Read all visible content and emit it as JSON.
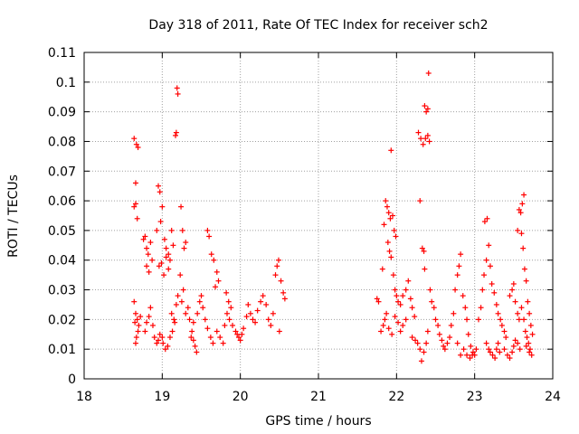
{
  "chart_data": {
    "type": "scatter",
    "title": "Day 318 of 2011, Rate Of TEC Index for receiver sch2",
    "xlabel": "GPS time / hours",
    "ylabel": "ROTI / TECUs",
    "xlim": [
      18,
      24
    ],
    "ylim": [
      0,
      0.11
    ],
    "xticks": [
      "18",
      "19",
      "20",
      "21",
      "22",
      "23",
      "24"
    ],
    "yticks": [
      "0",
      "0.01",
      "0.02",
      "0.03",
      "0.04",
      "0.05",
      "0.06",
      "0.07",
      "0.08",
      "0.09",
      "0.1",
      "0.11"
    ],
    "grid": true,
    "marker": "+",
    "color": "#ff0000",
    "series": [
      {
        "name": "ROTI",
        "points": [
          [
            18.64,
            0.081
          ],
          [
            18.67,
            0.079
          ],
          [
            18.69,
            0.078
          ],
          [
            18.66,
            0.066
          ],
          [
            18.64,
            0.058
          ],
          [
            18.66,
            0.059
          ],
          [
            18.68,
            0.054
          ],
          [
            18.64,
            0.026
          ],
          [
            18.66,
            0.022
          ],
          [
            18.68,
            0.02
          ],
          [
            18.7,
            0.018
          ],
          [
            18.65,
            0.019
          ],
          [
            18.67,
            0.014
          ],
          [
            18.69,
            0.016
          ],
          [
            18.72,
            0.021
          ],
          [
            18.66,
            0.012
          ],
          [
            18.76,
            0.047
          ],
          [
            18.78,
            0.048
          ],
          [
            18.8,
            0.044
          ],
          [
            18.82,
            0.042
          ],
          [
            18.85,
            0.046
          ],
          [
            18.8,
            0.038
          ],
          [
            18.83,
            0.036
          ],
          [
            18.87,
            0.04
          ],
          [
            18.78,
            0.016
          ],
          [
            18.8,
            0.019
          ],
          [
            18.83,
            0.021
          ],
          [
            18.85,
            0.024
          ],
          [
            18.88,
            0.018
          ],
          [
            18.9,
            0.014
          ],
          [
            18.93,
            0.012
          ],
          [
            18.95,
            0.013
          ],
          [
            18.97,
            0.015
          ],
          [
            19.0,
            0.014
          ],
          [
            18.95,
            0.065
          ],
          [
            18.97,
            0.063
          ],
          [
            19.0,
            0.058
          ],
          [
            18.98,
            0.053
          ],
          [
            18.93,
            0.05
          ],
          [
            19.03,
            0.047
          ],
          [
            19.05,
            0.044
          ],
          [
            19.08,
            0.042
          ],
          [
            19.1,
            0.04
          ],
          [
            19.12,
            0.05
          ],
          [
            19.14,
            0.045
          ],
          [
            18.96,
            0.038
          ],
          [
            18.99,
            0.039
          ],
          [
            19.02,
            0.035
          ],
          [
            19.05,
            0.041
          ],
          [
            19.08,
            0.037
          ],
          [
            19.01,
            0.012
          ],
          [
            19.04,
            0.01
          ],
          [
            19.07,
            0.011
          ],
          [
            19.1,
            0.014
          ],
          [
            19.13,
            0.016
          ],
          [
            19.15,
            0.02
          ],
          [
            19.12,
            0.022
          ],
          [
            19.18,
            0.025
          ],
          [
            19.2,
            0.028
          ],
          [
            19.16,
            0.019
          ],
          [
            19.19,
            0.098
          ],
          [
            19.2,
            0.096
          ],
          [
            19.18,
            0.083
          ],
          [
            19.17,
            0.082
          ],
          [
            19.24,
            0.058
          ],
          [
            19.26,
            0.05
          ],
          [
            19.3,
            0.046
          ],
          [
            19.28,
            0.044
          ],
          [
            19.23,
            0.035
          ],
          [
            19.27,
            0.03
          ],
          [
            19.25,
            0.026
          ],
          [
            19.3,
            0.022
          ],
          [
            19.33,
            0.024
          ],
          [
            19.35,
            0.02
          ],
          [
            19.38,
            0.016
          ],
          [
            19.4,
            0.013
          ],
          [
            19.42,
            0.011
          ],
          [
            19.44,
            0.009
          ],
          [
            19.37,
            0.014
          ],
          [
            19.4,
            0.019
          ],
          [
            19.45,
            0.022
          ],
          [
            19.48,
            0.026
          ],
          [
            19.5,
            0.028
          ],
          [
            19.52,
            0.024
          ],
          [
            19.58,
            0.05
          ],
          [
            19.6,
            0.048
          ],
          [
            19.63,
            0.042
          ],
          [
            19.66,
            0.04
          ],
          [
            19.7,
            0.036
          ],
          [
            19.72,
            0.033
          ],
          [
            19.68,
            0.031
          ],
          [
            19.55,
            0.02
          ],
          [
            19.58,
            0.017
          ],
          [
            19.62,
            0.014
          ],
          [
            19.65,
            0.012
          ],
          [
            19.7,
            0.016
          ],
          [
            19.74,
            0.014
          ],
          [
            19.78,
            0.012
          ],
          [
            19.8,
            0.018
          ],
          [
            19.83,
            0.022
          ],
          [
            19.85,
            0.026
          ],
          [
            19.88,
            0.024
          ],
          [
            19.82,
            0.029
          ],
          [
            19.86,
            0.02
          ],
          [
            19.9,
            0.018
          ],
          [
            19.94,
            0.016
          ],
          [
            19.96,
            0.015
          ],
          [
            19.98,
            0.014
          ],
          [
            20.0,
            0.013
          ],
          [
            20.02,
            0.015
          ],
          [
            20.04,
            0.017
          ],
          [
            20.08,
            0.021
          ],
          [
            20.1,
            0.025
          ],
          [
            20.13,
            0.022
          ],
          [
            20.16,
            0.02
          ],
          [
            20.19,
            0.019
          ],
          [
            20.22,
            0.023
          ],
          [
            20.26,
            0.026
          ],
          [
            20.29,
            0.028
          ],
          [
            20.33,
            0.025
          ],
          [
            20.36,
            0.02
          ],
          [
            20.39,
            0.018
          ],
          [
            20.42,
            0.022
          ],
          [
            20.45,
            0.035
          ],
          [
            20.47,
            0.038
          ],
          [
            20.49,
            0.04
          ],
          [
            20.52,
            0.033
          ],
          [
            20.55,
            0.029
          ],
          [
            20.57,
            0.027
          ],
          [
            20.5,
            0.016
          ],
          [
            21.75,
            0.027
          ],
          [
            21.77,
            0.026
          ],
          [
            21.8,
            0.016
          ],
          [
            21.83,
            0.018
          ],
          [
            21.85,
            0.02
          ],
          [
            21.87,
            0.022
          ],
          [
            21.82,
            0.037
          ],
          [
            21.84,
            0.052
          ],
          [
            21.86,
            0.06
          ],
          [
            21.88,
            0.058
          ],
          [
            21.9,
            0.056
          ],
          [
            21.92,
            0.054
          ],
          [
            21.95,
            0.055
          ],
          [
            21.97,
            0.05
          ],
          [
            21.99,
            0.048
          ],
          [
            21.93,
            0.077
          ],
          [
            21.89,
            0.046
          ],
          [
            21.91,
            0.043
          ],
          [
            21.93,
            0.041
          ],
          [
            21.96,
            0.035
          ],
          [
            21.98,
            0.03
          ],
          [
            22.0,
            0.028
          ],
          [
            22.02,
            0.026
          ],
          [
            21.9,
            0.017
          ],
          [
            21.94,
            0.015
          ],
          [
            21.98,
            0.021
          ],
          [
            22.02,
            0.019
          ],
          [
            22.05,
            0.016
          ],
          [
            22.08,
            0.018
          ],
          [
            22.12,
            0.02
          ],
          [
            22.05,
            0.025
          ],
          [
            22.08,
            0.028
          ],
          [
            22.12,
            0.03
          ],
          [
            22.15,
            0.033
          ],
          [
            22.18,
            0.027
          ],
          [
            22.2,
            0.024
          ],
          [
            22.23,
            0.021
          ],
          [
            22.2,
            0.014
          ],
          [
            22.24,
            0.013
          ],
          [
            22.27,
            0.012
          ],
          [
            22.3,
            0.01
          ],
          [
            22.32,
            0.006
          ],
          [
            22.35,
            0.009
          ],
          [
            22.38,
            0.012
          ],
          [
            22.4,
            0.016
          ],
          [
            22.28,
            0.083
          ],
          [
            22.31,
            0.081
          ],
          [
            22.34,
            0.079
          ],
          [
            22.37,
            0.081
          ],
          [
            22.4,
            0.082
          ],
          [
            22.42,
            0.08
          ],
          [
            22.36,
            0.092
          ],
          [
            22.38,
            0.09
          ],
          [
            22.4,
            0.091
          ],
          [
            22.41,
            0.103
          ],
          [
            22.3,
            0.06
          ],
          [
            22.33,
            0.044
          ],
          [
            22.35,
            0.043
          ],
          [
            22.36,
            0.037
          ],
          [
            22.43,
            0.03
          ],
          [
            22.45,
            0.026
          ],
          [
            22.48,
            0.024
          ],
          [
            22.5,
            0.02
          ],
          [
            22.53,
            0.018
          ],
          [
            22.55,
            0.015
          ],
          [
            22.58,
            0.013
          ],
          [
            22.6,
            0.011
          ],
          [
            22.62,
            0.01
          ],
          [
            22.65,
            0.012
          ],
          [
            22.68,
            0.014
          ],
          [
            22.7,
            0.018
          ],
          [
            22.73,
            0.022
          ],
          [
            22.75,
            0.03
          ],
          [
            22.78,
            0.035
          ],
          [
            22.8,
            0.038
          ],
          [
            22.82,
            0.042
          ],
          [
            22.85,
            0.028
          ],
          [
            22.88,
            0.024
          ],
          [
            22.9,
            0.02
          ],
          [
            22.92,
            0.015
          ],
          [
            22.95,
            0.011
          ],
          [
            22.98,
            0.009
          ],
          [
            23.0,
            0.008
          ],
          [
            23.02,
            0.01
          ],
          [
            22.78,
            0.012
          ],
          [
            22.82,
            0.008
          ],
          [
            22.86,
            0.01
          ],
          [
            22.9,
            0.008
          ],
          [
            22.94,
            0.007
          ],
          [
            22.97,
            0.008
          ],
          [
            23.05,
            0.02
          ],
          [
            23.08,
            0.024
          ],
          [
            23.1,
            0.03
          ],
          [
            23.12,
            0.035
          ],
          [
            23.15,
            0.04
          ],
          [
            23.13,
            0.053
          ],
          [
            23.16,
            0.054
          ],
          [
            23.18,
            0.045
          ],
          [
            23.2,
            0.038
          ],
          [
            23.15,
            0.012
          ],
          [
            23.18,
            0.01
          ],
          [
            23.2,
            0.009
          ],
          [
            23.23,
            0.008
          ],
          [
            23.26,
            0.007
          ],
          [
            23.28,
            0.01
          ],
          [
            23.3,
            0.012
          ],
          [
            23.32,
            0.009
          ],
          [
            23.22,
            0.032
          ],
          [
            23.25,
            0.029
          ],
          [
            23.28,
            0.025
          ],
          [
            23.3,
            0.022
          ],
          [
            23.33,
            0.02
          ],
          [
            23.35,
            0.018
          ],
          [
            23.38,
            0.016
          ],
          [
            23.4,
            0.014
          ],
          [
            23.38,
            0.01
          ],
          [
            23.42,
            0.008
          ],
          [
            23.45,
            0.007
          ],
          [
            23.48,
            0.009
          ],
          [
            23.5,
            0.011
          ],
          [
            23.52,
            0.013
          ],
          [
            23.55,
            0.012
          ],
          [
            23.58,
            0.01
          ],
          [
            23.45,
            0.028
          ],
          [
            23.48,
            0.03
          ],
          [
            23.5,
            0.032
          ],
          [
            23.52,
            0.026
          ],
          [
            23.55,
            0.022
          ],
          [
            23.57,
            0.02
          ],
          [
            23.55,
            0.05
          ],
          [
            23.57,
            0.057
          ],
          [
            23.59,
            0.056
          ],
          [
            23.61,
            0.059
          ],
          [
            23.63,
            0.062
          ],
          [
            23.6,
            0.049
          ],
          [
            23.62,
            0.044
          ],
          [
            23.6,
            0.024
          ],
          [
            23.63,
            0.02
          ],
          [
            23.65,
            0.016
          ],
          [
            23.67,
            0.014
          ],
          [
            23.69,
            0.012
          ],
          [
            23.71,
            0.01
          ],
          [
            23.73,
            0.008
          ],
          [
            23.64,
            0.037
          ],
          [
            23.66,
            0.033
          ],
          [
            23.68,
            0.026
          ],
          [
            23.7,
            0.022
          ],
          [
            23.72,
            0.018
          ],
          [
            23.74,
            0.015
          ],
          [
            23.66,
            0.011
          ],
          [
            23.7,
            0.009
          ]
        ]
      }
    ]
  }
}
